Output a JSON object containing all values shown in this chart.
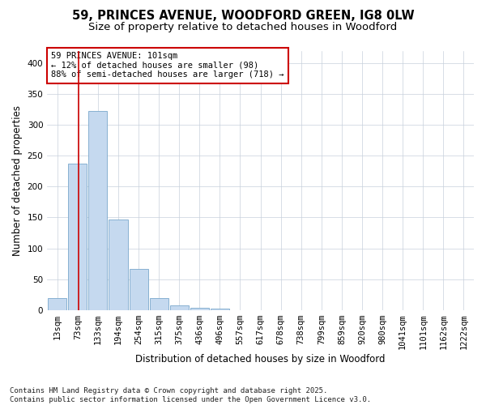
{
  "title": "59, PRINCES AVENUE, WOODFORD GREEN, IG8 0LW",
  "subtitle": "Size of property relative to detached houses in Woodford",
  "xlabel": "Distribution of detached houses by size in Woodford",
  "ylabel": "Number of detached properties",
  "bar_values": [
    20,
    237,
    322,
    147,
    66,
    20,
    7,
    4,
    2,
    0,
    0,
    0,
    0,
    0,
    0,
    0,
    0,
    0,
    0,
    0,
    0
  ],
  "bin_labels": [
    "13sqm",
    "73sqm",
    "133sqm",
    "194sqm",
    "254sqm",
    "315sqm",
    "375sqm",
    "436sqm",
    "496sqm",
    "557sqm",
    "617sqm",
    "678sqm",
    "738sqm",
    "799sqm",
    "859sqm",
    "920sqm",
    "980sqm",
    "1041sqm",
    "1101sqm",
    "1162sqm",
    "1222sqm"
  ],
  "bar_color": "#c5d9ef",
  "bar_edge_color": "#7aa8cc",
  "red_line_x": 1.03,
  "annotation_text": "59 PRINCES AVENUE: 101sqm\n← 12% of detached houses are smaller (98)\n88% of semi-detached houses are larger (718) →",
  "annotation_box_color": "#ffffff",
  "annotation_box_edge": "#cc0000",
  "ylim": [
    0,
    420
  ],
  "yticks": [
    0,
    50,
    100,
    150,
    200,
    250,
    300,
    350,
    400
  ],
  "background_color": "#ffffff",
  "grid_color": "#c8d0dc",
  "footer": "Contains HM Land Registry data © Crown copyright and database right 2025.\nContains public sector information licensed under the Open Government Licence v3.0.",
  "title_fontsize": 10.5,
  "subtitle_fontsize": 9.5,
  "axis_label_fontsize": 8.5,
  "tick_fontsize": 7.5,
  "annotation_fontsize": 7.5,
  "footer_fontsize": 6.5
}
